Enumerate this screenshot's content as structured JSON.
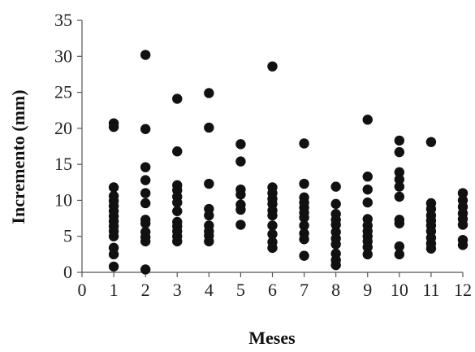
{
  "chart_data": {
    "type": "scatter",
    "title": "",
    "xlabel": "Meses",
    "ylabel": "Incremento (mm)",
    "xlim": [
      0,
      12
    ],
    "ylim": [
      0,
      35
    ],
    "x_ticks": [
      "0",
      "1",
      "2",
      "3",
      "4",
      "5",
      "6",
      "7",
      "8",
      "9",
      "10",
      "11",
      "12"
    ],
    "y_ticks": [
      "0",
      "5",
      "10",
      "15",
      "20",
      "25",
      "30",
      "35"
    ],
    "grid": false,
    "legend": "none",
    "marker_color": "#111111",
    "series": [
      {
        "points": [
          {
            "x": 1,
            "y": 20.7
          },
          {
            "x": 1,
            "y": 20.2
          },
          {
            "x": 1,
            "y": 11.8
          },
          {
            "x": 1,
            "y": 10.6
          },
          {
            "x": 1,
            "y": 9.9
          },
          {
            "x": 1,
            "y": 9.2
          },
          {
            "x": 1,
            "y": 8.5
          },
          {
            "x": 1,
            "y": 7.8
          },
          {
            "x": 1,
            "y": 7.1
          },
          {
            "x": 1,
            "y": 6.4
          },
          {
            "x": 1,
            "y": 5.7
          },
          {
            "x": 1,
            "y": 5.0
          },
          {
            "x": 1,
            "y": 3.4
          },
          {
            "x": 1,
            "y": 2.5
          },
          {
            "x": 1,
            "y": 0.8
          },
          {
            "x": 2,
            "y": 30.2
          },
          {
            "x": 2,
            "y": 19.9
          },
          {
            "x": 2,
            "y": 14.6
          },
          {
            "x": 2,
            "y": 12.8
          },
          {
            "x": 2,
            "y": 11.0
          },
          {
            "x": 2,
            "y": 9.6
          },
          {
            "x": 2,
            "y": 7.3
          },
          {
            "x": 2,
            "y": 6.8
          },
          {
            "x": 2,
            "y": 5.6
          },
          {
            "x": 2,
            "y": 4.9
          },
          {
            "x": 2,
            "y": 4.3
          },
          {
            "x": 2,
            "y": 0.4
          },
          {
            "x": 3,
            "y": 24.1
          },
          {
            "x": 3,
            "y": 16.8
          },
          {
            "x": 3,
            "y": 12.1
          },
          {
            "x": 3,
            "y": 11.4
          },
          {
            "x": 3,
            "y": 10.5
          },
          {
            "x": 3,
            "y": 9.7
          },
          {
            "x": 3,
            "y": 8.5
          },
          {
            "x": 3,
            "y": 7.0
          },
          {
            "x": 3,
            "y": 6.4
          },
          {
            "x": 3,
            "y": 5.7
          },
          {
            "x": 3,
            "y": 5.0
          },
          {
            "x": 3,
            "y": 4.3
          },
          {
            "x": 4,
            "y": 24.9
          },
          {
            "x": 4,
            "y": 20.1
          },
          {
            "x": 4,
            "y": 12.3
          },
          {
            "x": 4,
            "y": 8.8
          },
          {
            "x": 4,
            "y": 7.9
          },
          {
            "x": 4,
            "y": 6.5
          },
          {
            "x": 4,
            "y": 5.7
          },
          {
            "x": 4,
            "y": 5.1
          },
          {
            "x": 4,
            "y": 4.3
          },
          {
            "x": 5,
            "y": 17.8
          },
          {
            "x": 5,
            "y": 15.4
          },
          {
            "x": 5,
            "y": 11.5
          },
          {
            "x": 5,
            "y": 10.8
          },
          {
            "x": 5,
            "y": 9.4
          },
          {
            "x": 5,
            "y": 8.7
          },
          {
            "x": 5,
            "y": 6.6
          },
          {
            "x": 6,
            "y": 28.6
          },
          {
            "x": 6,
            "y": 11.8
          },
          {
            "x": 6,
            "y": 11.0
          },
          {
            "x": 6,
            "y": 10.2
          },
          {
            "x": 6,
            "y": 9.5
          },
          {
            "x": 6,
            "y": 8.6
          },
          {
            "x": 6,
            "y": 7.9
          },
          {
            "x": 6,
            "y": 6.5
          },
          {
            "x": 6,
            "y": 5.3
          },
          {
            "x": 6,
            "y": 4.2
          },
          {
            "x": 6,
            "y": 3.4
          },
          {
            "x": 7,
            "y": 17.9
          },
          {
            "x": 7,
            "y": 12.3
          },
          {
            "x": 7,
            "y": 10.4
          },
          {
            "x": 7,
            "y": 9.7
          },
          {
            "x": 7,
            "y": 9.0
          },
          {
            "x": 7,
            "y": 8.3
          },
          {
            "x": 7,
            "y": 7.6
          },
          {
            "x": 7,
            "y": 6.5
          },
          {
            "x": 7,
            "y": 5.4
          },
          {
            "x": 7,
            "y": 4.6
          },
          {
            "x": 7,
            "y": 2.3
          },
          {
            "x": 8,
            "y": 11.9
          },
          {
            "x": 8,
            "y": 9.5
          },
          {
            "x": 8,
            "y": 8.1
          },
          {
            "x": 8,
            "y": 7.3
          },
          {
            "x": 8,
            "y": 6.6
          },
          {
            "x": 8,
            "y": 5.6
          },
          {
            "x": 8,
            "y": 4.7
          },
          {
            "x": 8,
            "y": 3.9
          },
          {
            "x": 8,
            "y": 2.6
          },
          {
            "x": 8,
            "y": 1.7
          },
          {
            "x": 8,
            "y": 1.0
          },
          {
            "x": 9,
            "y": 21.2
          },
          {
            "x": 9,
            "y": 13.3
          },
          {
            "x": 9,
            "y": 11.5
          },
          {
            "x": 9,
            "y": 9.7
          },
          {
            "x": 9,
            "y": 7.4
          },
          {
            "x": 9,
            "y": 6.5
          },
          {
            "x": 9,
            "y": 5.7
          },
          {
            "x": 9,
            "y": 5.0
          },
          {
            "x": 9,
            "y": 4.3
          },
          {
            "x": 9,
            "y": 3.5
          },
          {
            "x": 9,
            "y": 2.5
          },
          {
            "x": 10,
            "y": 18.3
          },
          {
            "x": 10,
            "y": 16.7
          },
          {
            "x": 10,
            "y": 13.9
          },
          {
            "x": 10,
            "y": 12.9
          },
          {
            "x": 10,
            "y": 11.9
          },
          {
            "x": 10,
            "y": 10.5
          },
          {
            "x": 10,
            "y": 7.3
          },
          {
            "x": 10,
            "y": 6.8
          },
          {
            "x": 10,
            "y": 3.6
          },
          {
            "x": 10,
            "y": 2.5
          },
          {
            "x": 11,
            "y": 18.1
          },
          {
            "x": 11,
            "y": 9.6
          },
          {
            "x": 11,
            "y": 8.8
          },
          {
            "x": 11,
            "y": 7.9
          },
          {
            "x": 11,
            "y": 7.2
          },
          {
            "x": 11,
            "y": 6.5
          },
          {
            "x": 11,
            "y": 5.7
          },
          {
            "x": 11,
            "y": 4.8
          },
          {
            "x": 11,
            "y": 4.0
          },
          {
            "x": 11,
            "y": 3.3
          },
          {
            "x": 12,
            "y": 11.0
          },
          {
            "x": 12,
            "y": 10.0
          },
          {
            "x": 12,
            "y": 9.1
          },
          {
            "x": 12,
            "y": 8.2
          },
          {
            "x": 12,
            "y": 7.4
          },
          {
            "x": 12,
            "y": 6.6
          },
          {
            "x": 12,
            "y": 4.5
          },
          {
            "x": 12,
            "y": 3.8
          }
        ]
      }
    ]
  }
}
